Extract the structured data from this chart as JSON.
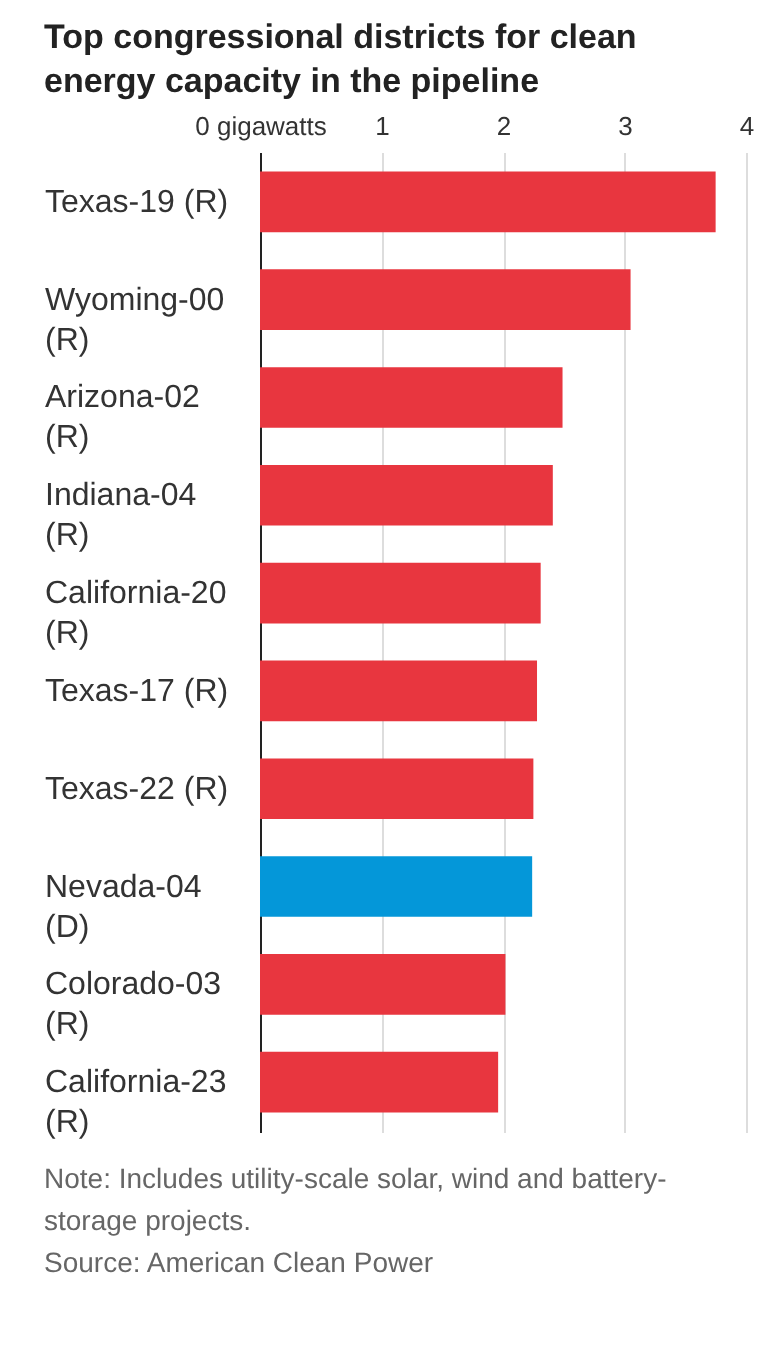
{
  "chart_data": {
    "type": "bar",
    "orientation": "horizontal",
    "title": "Top congressional districts for clean energy capacity in the pipeline",
    "categories": [
      "Texas-19 (R)",
      "Wyoming-00 (R)",
      "Arizona-02 (R)",
      "Indiana-04 (R)",
      "California-20 (R)",
      "Texas-17 (R)",
      "Texas-22 (R)",
      "Nevada-04 (D)",
      "Colorado-03 (R)",
      "California-23 (R)"
    ],
    "values": [
      3.75,
      3.05,
      2.49,
      2.41,
      2.31,
      2.28,
      2.25,
      2.24,
      2.02,
      1.96
    ],
    "colors": [
      "#e8363f",
      "#e8363f",
      "#e8363f",
      "#e8363f",
      "#e8363f",
      "#e8363f",
      "#e8363f",
      "#0497d9",
      "#e8363f",
      "#e8363f"
    ],
    "xlim": [
      0,
      4
    ],
    "xticks": [
      {
        "value": 0,
        "label": "0 gigawatts"
      },
      1,
      2,
      3,
      4
    ],
    "grid": "x",
    "annotations": [
      "Note: Includes utility-scale solar, wind and battery-storage projects.",
      "Source: American Clean Power"
    ]
  }
}
